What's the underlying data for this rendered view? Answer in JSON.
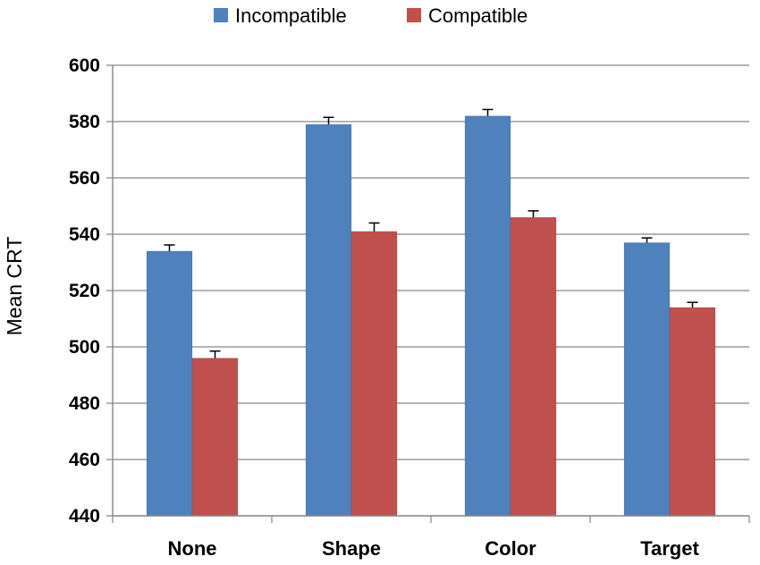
{
  "chart_data": {
    "type": "bar",
    "categories": [
      "None",
      "Shape",
      "Color",
      "Target"
    ],
    "series": [
      {
        "name": "Incompatible",
        "color": "#4F81BD",
        "values": [
          534,
          579,
          582,
          537
        ],
        "errors": [
          2.2,
          2.5,
          2.3,
          1.7
        ]
      },
      {
        "name": "Compatible",
        "color": "#C0504D",
        "values": [
          496,
          541,
          546,
          514
        ],
        "errors": [
          2.5,
          3.0,
          2.3,
          1.8
        ]
      }
    ],
    "title": "",
    "xlabel": "",
    "ylabel": "Mean CRT",
    "ylim": [
      440,
      600
    ],
    "yticks": [
      440,
      460,
      480,
      500,
      520,
      540,
      560,
      580,
      600
    ],
    "grid": true,
    "legend_position": "top"
  }
}
